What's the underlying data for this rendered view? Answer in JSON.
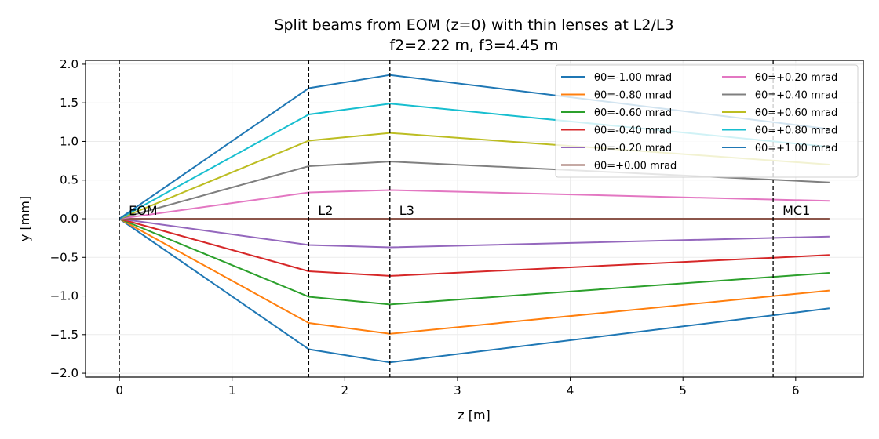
{
  "chart_data": {
    "type": "line",
    "title": "Split beams from EOM (z=0) with thin lenses at L2/L3",
    "subtitle": "f2=2.22 m, f3=4.45 m",
    "xlabel": "z [m]",
    "ylabel": "y [mm]",
    "xlim": [
      -0.3,
      6.6
    ],
    "ylim": [
      -2.05,
      2.05
    ],
    "xticks": [
      0,
      1,
      2,
      3,
      4,
      5,
      6
    ],
    "yticks": [
      -2.0,
      -1.5,
      -1.0,
      -0.5,
      0.0,
      0.5,
      1.0,
      1.5,
      2.0
    ],
    "xtick_labels": [
      "0",
      "1",
      "2",
      "3",
      "4",
      "5",
      "6"
    ],
    "ytick_labels": [
      "−2.0",
      "−1.5",
      "−1.0",
      "−0.5",
      "0.0",
      "0.5",
      "1.0",
      "1.5",
      "2.0"
    ],
    "grid": true,
    "legend_position": "top-right",
    "legend_columns": 2,
    "vlines": [
      {
        "x": 0.0,
        "label": "EOM"
      },
      {
        "x": 1.68,
        "label": "L2"
      },
      {
        "x": 2.4,
        "label": "L3"
      },
      {
        "x": 5.8,
        "label": "MC1"
      }
    ],
    "x": [
      0.0,
      1.68,
      2.4,
      6.3
    ],
    "series": [
      {
        "name": "θ0=-1.00 mrad",
        "color": "#1f77b4",
        "values": [
          0.0,
          -1.69,
          -1.86,
          -1.16
        ]
      },
      {
        "name": "θ0=-0.80 mrad",
        "color": "#ff7f0e",
        "values": [
          0.0,
          -1.35,
          -1.49,
          -0.93
        ]
      },
      {
        "name": "θ0=-0.60 mrad",
        "color": "#2ca02c",
        "values": [
          0.0,
          -1.01,
          -1.11,
          -0.7
        ]
      },
      {
        "name": "θ0=-0.40 mrad",
        "color": "#d62728",
        "values": [
          0.0,
          -0.68,
          -0.74,
          -0.47
        ]
      },
      {
        "name": "θ0=-0.20 mrad",
        "color": "#9467bd",
        "values": [
          0.0,
          -0.34,
          -0.37,
          -0.23
        ]
      },
      {
        "name": "θ0=+0.00 mrad",
        "color": "#8c564b",
        "values": [
          0.0,
          0.0,
          0.0,
          0.0
        ]
      },
      {
        "name": "θ0=+0.20 mrad",
        "color": "#e377c2",
        "values": [
          0.0,
          0.34,
          0.37,
          0.23
        ]
      },
      {
        "name": "θ0=+0.40 mrad",
        "color": "#7f7f7f",
        "values": [
          0.0,
          0.68,
          0.74,
          0.47
        ]
      },
      {
        "name": "θ0=+0.60 mrad",
        "color": "#bcbd22",
        "values": [
          0.0,
          1.01,
          1.11,
          0.7
        ]
      },
      {
        "name": "θ0=+0.80 mrad",
        "color": "#17becf",
        "values": [
          0.0,
          1.35,
          1.49,
          0.93
        ]
      },
      {
        "name": "θ0=+1.00 mrad",
        "color": "#1f77b4",
        "values": [
          0.0,
          1.69,
          1.86,
          1.16
        ]
      }
    ]
  }
}
